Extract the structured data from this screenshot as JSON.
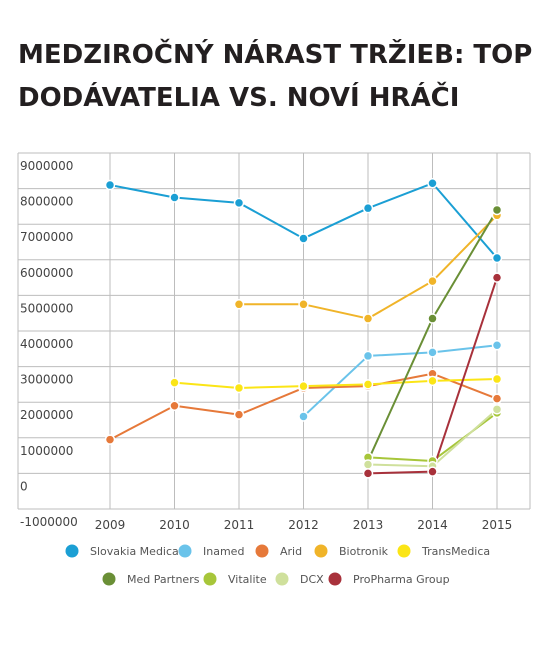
{
  "title_lines": [
    "MEDZIROČNÝ NÁRAST TRŽIEB: TOP",
    "DODÁVATELIA VS. NOVÍ HRÁČI"
  ],
  "chart_data": {
    "type": "line",
    "title": "MEDZIROČNÝ NÁRAST TRŽIEB: TOP DODÁVATELIA VS. NOVÍ HRÁČI",
    "xlabel": "",
    "ylabel": "",
    "x": [
      "2009",
      "2010",
      "2011",
      "2012",
      "2013",
      "2014",
      "2015"
    ],
    "ylim": [
      -1000000,
      9000000
    ],
    "yticks": [
      9000000,
      8000000,
      7000000,
      6000000,
      5000000,
      4000000,
      3000000,
      2000000,
      1000000,
      0,
      -1000000
    ],
    "grid": true,
    "legend_position": "bottom",
    "series": [
      {
        "name": "Slovakia Medical",
        "color": "#1b9fd4",
        "values": [
          8100000,
          7750000,
          7600000,
          6600000,
          7450000,
          8150000,
          6050000
        ]
      },
      {
        "name": "Inamed",
        "color": "#6ac3ea",
        "values": [
          null,
          null,
          null,
          1600000,
          3300000,
          3400000,
          3600000
        ]
      },
      {
        "name": "Arid",
        "color": "#e6793a",
        "values": [
          950000,
          1900000,
          1650000,
          2400000,
          2450000,
          2800000,
          2100000
        ]
      },
      {
        "name": "Biotronik",
        "color": "#f0b429",
        "values": [
          null,
          null,
          4750000,
          4750000,
          4350000,
          5400000,
          7250000
        ]
      },
      {
        "name": "TransMedica",
        "color": "#fbe516",
        "values": [
          null,
          2550000,
          2400000,
          2450000,
          2500000,
          2600000,
          2650000
        ]
      },
      {
        "name": "Med Partners",
        "color": "#6a8f36",
        "values": [
          null,
          null,
          null,
          null,
          350000,
          4350000,
          7400000
        ]
      },
      {
        "name": "Vitalite",
        "color": "#a7c63a",
        "values": [
          null,
          null,
          null,
          null,
          450000,
          350000,
          1700000
        ]
      },
      {
        "name": "DCX",
        "color": "#cfe09c",
        "values": [
          null,
          null,
          null,
          null,
          250000,
          200000,
          1800000
        ]
      },
      {
        "name": "ProPharma Group",
        "color": "#a8313b",
        "values": [
          null,
          null,
          null,
          null,
          0,
          50000,
          5500000
        ]
      }
    ]
  }
}
